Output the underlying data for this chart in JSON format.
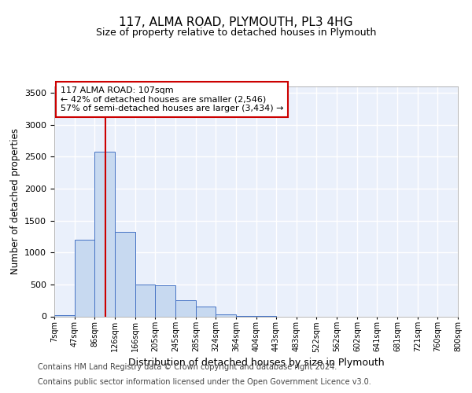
{
  "title": "117, ALMA ROAD, PLYMOUTH, PL3 4HG",
  "subtitle": "Size of property relative to detached houses in Plymouth",
  "xlabel": "Distribution of detached houses by size in Plymouth",
  "ylabel": "Number of detached properties",
  "bar_color": "#c7d9f0",
  "bar_edge_color": "#4472c4",
  "bg_color": "#eaf0fb",
  "grid_color": "#ffffff",
  "vline_color": "#cc0000",
  "vline_x": 107,
  "annotation_line1": "117 ALMA ROAD: 107sqm",
  "annotation_line2": "← 42% of detached houses are smaller (2,546)",
  "annotation_line3": "57% of semi-detached houses are larger (3,434) →",
  "annotation_box_color": "#cc0000",
  "bin_edges": [
    7,
    47,
    86,
    126,
    166,
    205,
    245,
    285,
    324,
    364,
    404,
    443,
    483,
    522,
    562,
    602,
    641,
    681,
    721,
    760,
    800
  ],
  "bin_labels": [
    "7sqm",
    "47sqm",
    "86sqm",
    "126sqm",
    "166sqm",
    "205sqm",
    "245sqm",
    "285sqm",
    "324sqm",
    "364sqm",
    "404sqm",
    "443sqm",
    "483sqm",
    "522sqm",
    "562sqm",
    "602sqm",
    "641sqm",
    "681sqm",
    "721sqm",
    "760sqm",
    "800sqm"
  ],
  "bar_heights": [
    20,
    1200,
    2580,
    1320,
    500,
    490,
    250,
    150,
    30,
    5,
    5,
    0,
    0,
    0,
    0,
    0,
    0,
    0,
    0,
    0
  ],
  "ylim": [
    0,
    3600
  ],
  "yticks": [
    0,
    500,
    1000,
    1500,
    2000,
    2500,
    3000,
    3500
  ],
  "footer_line1": "Contains HM Land Registry data © Crown copyright and database right 2024.",
  "footer_line2": "Contains public sector information licensed under the Open Government Licence v3.0."
}
